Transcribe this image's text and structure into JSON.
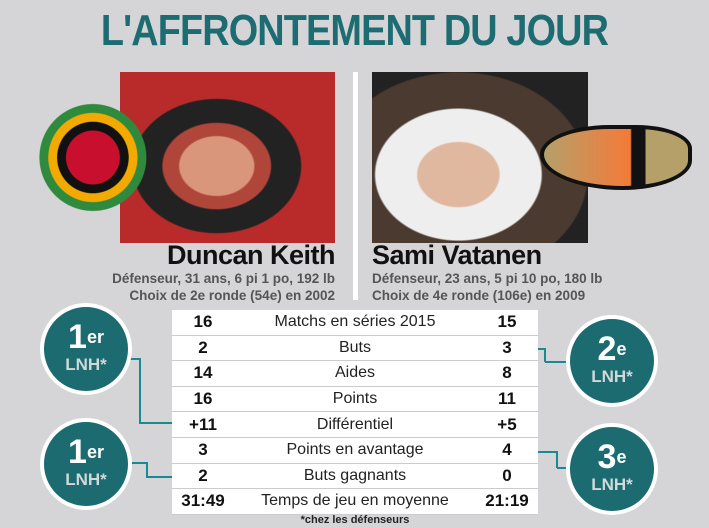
{
  "title": "L'AFFRONTEMENT DU JOUR",
  "players": [
    {
      "name": "Duncan Keith",
      "info1": "Défenseur, 31 ans, 6 pi 1 po, 192 lb",
      "info2": "Choix de 2e ronde (54e) en 2002",
      "team_logo": "blackhawks-logo"
    },
    {
      "name": "Sami Vatanen",
      "info1": "Défenseur, 23 ans, 5 pi 10 po, 180 lb",
      "info2": "Choix de 4e ronde (106e) en 2009",
      "team_logo": "ducks-logo"
    }
  ],
  "stats": [
    {
      "left": "16",
      "label": "Matchs en séries 2015",
      "right": "15"
    },
    {
      "left": "2",
      "label": "Buts",
      "right": "3"
    },
    {
      "left": "14",
      "label": "Aides",
      "right": "8"
    },
    {
      "left": "16",
      "label": "Points",
      "right": "11"
    },
    {
      "left": "+11",
      "label": "Différentiel",
      "right": "+5"
    },
    {
      "left": "3",
      "label": "Points en avantage",
      "right": "4"
    },
    {
      "left": "2",
      "label": "Buts gagnants",
      "right": "0"
    },
    {
      "left": "31:49",
      "label": "Temps de jeu en moyenne",
      "right": "21:19"
    }
  ],
  "badges": [
    {
      "rank": "1",
      "suffix": "er",
      "league": "LNH*"
    },
    {
      "rank": "1",
      "suffix": "er",
      "league": "LNH*"
    },
    {
      "rank": "2",
      "suffix": "e",
      "league": "LNH*"
    },
    {
      "rank": "3",
      "suffix": "e",
      "league": "LNH*"
    }
  ],
  "footnote": "*chez les défenseurs",
  "colors": {
    "accent": "#1b6b70",
    "background": "#d5d5d7"
  }
}
